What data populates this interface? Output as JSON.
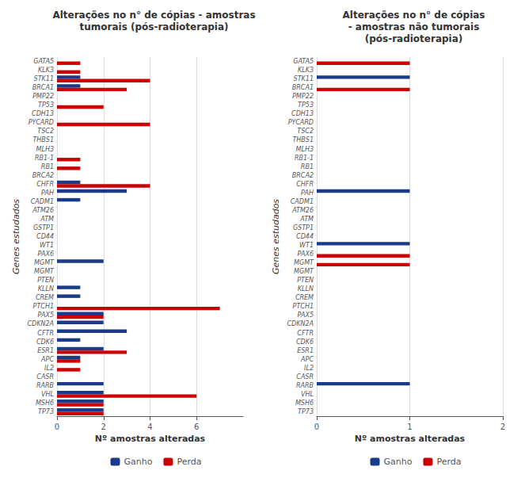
{
  "chart_data": [
    {
      "type": "bar",
      "orientation": "horizontal",
      "title": "Alterações no n° de cópias - amostras\ntumorais (pós-radioterapia)",
      "xlabel": "Nº amostras alteradas",
      "ylabel": "Genes estudados",
      "categories": [
        "GATA5",
        "KLK3",
        "STK11",
        "BRCA1",
        "PMP22",
        "TP53",
        "CDH13",
        "PYCARD",
        "TSC2",
        "THBS1",
        "MLH3",
        "RB1-1",
        "RB1",
        "BRCA2",
        "CHFR",
        "PAH",
        "CADM1",
        "ATM26",
        "ATM",
        "GSTP1",
        "CD44",
        "WT1",
        "PAX6",
        "MGMT",
        "MGMT",
        "PTEN",
        "KLLN",
        "CREM",
        "PTCH1",
        "PAX5",
        "CDKN2A",
        "CFTR",
        "CDK6",
        "ESR1",
        "APC",
        "IL2",
        "CASR",
        "RARB",
        "VHL",
        "MSH6",
        "TP73"
      ],
      "series": [
        {
          "name": "Ganho",
          "color": "#1a3a8a",
          "values": [
            0,
            0,
            1,
            1,
            0,
            0,
            0,
            0,
            0,
            0,
            0,
            0,
            0,
            0,
            1,
            3,
            1,
            0,
            0,
            0,
            0,
            0,
            0,
            2,
            0,
            0,
            1,
            1,
            0,
            2,
            2,
            3,
            1,
            2,
            1,
            0,
            0,
            2,
            2,
            2,
            2
          ]
        },
        {
          "name": "Perda",
          "color": "#cc0000",
          "values": [
            1,
            1,
            4,
            3,
            0,
            2,
            0,
            4,
            0,
            0,
            0,
            1,
            1,
            0,
            4,
            0,
            0,
            0,
            0,
            0,
            0,
            0,
            0,
            0,
            0,
            0,
            0,
            0,
            7,
            2,
            0,
            0,
            0,
            3,
            1,
            1,
            0,
            0,
            6,
            2,
            2
          ]
        }
      ],
      "xlim": [
        0,
        8
      ],
      "xticks": [
        0,
        2,
        4,
        6
      ],
      "grid": true,
      "legend": "bottom"
    },
    {
      "type": "bar",
      "orientation": "horizontal",
      "title": "Alterações no n° de cópias\n- amostras não tumorais\n(pós-radioterapia)",
      "xlabel": "Nº amostras alteradas",
      "ylabel": "Genes estudados",
      "categories": [
        "GATA5",
        "KLK3",
        "STK11",
        "BRCA1",
        "PMP22",
        "TP53",
        "CDH13",
        "PYCARD",
        "TSC2",
        "THBS1",
        "MLH3",
        "RB1-1",
        "RB1",
        "BRCA2",
        "CHFR",
        "PAH",
        "CADM1",
        "ATM26",
        "ATM",
        "GSTP1",
        "CD44",
        "WT1",
        "PAX6",
        "MGMT",
        "MGMT",
        "PTEN",
        "KLLN",
        "CREM",
        "PTCH1",
        "PAX5",
        "CDKN2A",
        "CFTR",
        "CDK6",
        "ESR1",
        "APC",
        "IL2",
        "CASR",
        "RARB",
        "VHL",
        "MSH6",
        "TP73"
      ],
      "series": [
        {
          "name": "Ganho",
          "color": "#1a3a8a",
          "values": [
            0,
            0,
            1,
            0,
            0,
            0,
            0,
            0,
            0,
            0,
            0,
            0,
            0,
            0,
            0,
            1,
            0,
            0,
            0,
            0,
            0,
            1,
            0,
            0,
            0,
            0,
            0,
            0,
            0,
            0,
            0,
            0,
            0,
            0,
            0,
            0,
            0,
            1,
            0,
            0,
            0
          ]
        },
        {
          "name": "Perda",
          "color": "#cc0000",
          "values": [
            1,
            0,
            0,
            1,
            0,
            0,
            0,
            0,
            0,
            0,
            0,
            0,
            0,
            0,
            0,
            0,
            0,
            0,
            0,
            0,
            0,
            0,
            1,
            1,
            0,
            0,
            0,
            0,
            0,
            0,
            0,
            0,
            0,
            0,
            0,
            0,
            0,
            0,
            0,
            0,
            0
          ]
        }
      ],
      "xlim": [
        0,
        2
      ],
      "xticks": [
        0,
        1,
        2
      ],
      "grid": true,
      "legend": "bottom"
    }
  ]
}
